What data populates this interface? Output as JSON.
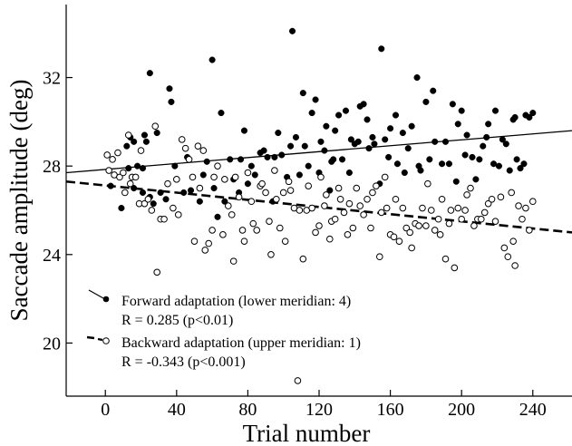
{
  "chart_data": {
    "type": "scatter",
    "xlabel": "Trial number",
    "ylabel": "Saccade amplitude (deg)",
    "xlim": [
      -22,
      262
    ],
    "ylim": [
      17.6,
      35.3
    ],
    "xticks": [
      0,
      40,
      80,
      120,
      160,
      200,
      240
    ],
    "yticks": [
      20,
      24,
      28,
      32
    ],
    "grid": false,
    "legend_position": "bottom-left",
    "series": [
      {
        "name": "Forward adaptation (lower meridian: 4)",
        "stat": "R = 0.285 (p<0.01)",
        "marker": "filled-circle",
        "line_style": "solid",
        "fit": {
          "x": [
            -22,
            262
          ],
          "y": [
            27.7,
            29.6
          ]
        },
        "points": [
          {
            "x": 3,
            "y": 27.1
          },
          {
            "x": 9,
            "y": 26.1
          },
          {
            "x": 13,
            "y": 27.9
          },
          {
            "x": 15,
            "y": 27.5
          },
          {
            "x": 16,
            "y": 27.0
          },
          {
            "x": 21,
            "y": 26.8
          },
          {
            "x": 24,
            "y": 26.5
          },
          {
            "x": 25,
            "y": 26.6
          },
          {
            "x": 12,
            "y": 28.9
          },
          {
            "x": 14,
            "y": 29.3
          },
          {
            "x": 16,
            "y": 29.1
          },
          {
            "x": 18,
            "y": 28.0
          },
          {
            "x": 21,
            "y": 27.9
          },
          {
            "x": 22,
            "y": 29.4
          },
          {
            "x": 23,
            "y": 29.1
          },
          {
            "x": 25,
            "y": 32.2
          },
          {
            "x": 27,
            "y": 26.3
          },
          {
            "x": 29,
            "y": 29.5
          },
          {
            "x": 31,
            "y": 26.8
          },
          {
            "x": 34,
            "y": 26.5
          },
          {
            "x": 36,
            "y": 31.5
          },
          {
            "x": 37,
            "y": 30.9
          },
          {
            "x": 39,
            "y": 28.0
          },
          {
            "x": 44,
            "y": 26.8
          },
          {
            "x": 46,
            "y": 28.4
          },
          {
            "x": 48,
            "y": 26.9
          },
          {
            "x": 53,
            "y": 26.4
          },
          {
            "x": 55,
            "y": 27.6
          },
          {
            "x": 57,
            "y": 28.2
          },
          {
            "x": 60,
            "y": 32.8
          },
          {
            "x": 61,
            "y": 27.0
          },
          {
            "x": 63,
            "y": 25.7
          },
          {
            "x": 65,
            "y": 30.4
          },
          {
            "x": 67,
            "y": 26.4
          },
          {
            "x": 70,
            "y": 28.3
          },
          {
            "x": 72,
            "y": 27.4
          },
          {
            "x": 75,
            "y": 26.8
          },
          {
            "x": 76,
            "y": 28.3
          },
          {
            "x": 78,
            "y": 29.6
          },
          {
            "x": 80,
            "y": 27.2
          },
          {
            "x": 82,
            "y": 28.0
          },
          {
            "x": 84,
            "y": 27.6
          },
          {
            "x": 87,
            "y": 28.6
          },
          {
            "x": 89,
            "y": 28.7
          },
          {
            "x": 91,
            "y": 28.4
          },
          {
            "x": 94,
            "y": 26.4
          },
          {
            "x": 95,
            "y": 28.4
          },
          {
            "x": 97,
            "y": 29.5
          },
          {
            "x": 99,
            "y": 28.5
          },
          {
            "x": 102,
            "y": 27.5
          },
          {
            "x": 104,
            "y": 28.9
          },
          {
            "x": 105,
            "y": 34.1
          },
          {
            "x": 107,
            "y": 29.3
          },
          {
            "x": 109,
            "y": 27.6
          },
          {
            "x": 111,
            "y": 31.3
          },
          {
            "x": 112,
            "y": 28.9
          },
          {
            "x": 114,
            "y": 28.0
          },
          {
            "x": 116,
            "y": 30.4
          },
          {
            "x": 118,
            "y": 31.0
          },
          {
            "x": 120,
            "y": 27.7
          },
          {
            "x": 121,
            "y": 29.1
          },
          {
            "x": 123,
            "y": 28.7
          },
          {
            "x": 124,
            "y": 29.8
          },
          {
            "x": 126,
            "y": 26.9
          },
          {
            "x": 127,
            "y": 28.2
          },
          {
            "x": 128,
            "y": 28.3
          },
          {
            "x": 129,
            "y": 29.6
          },
          {
            "x": 131,
            "y": 30.3
          },
          {
            "x": 133,
            "y": 28.3
          },
          {
            "x": 135,
            "y": 30.5
          },
          {
            "x": 137,
            "y": 27.7
          },
          {
            "x": 138,
            "y": 29.2
          },
          {
            "x": 140,
            "y": 29.0
          },
          {
            "x": 142,
            "y": 29.1
          },
          {
            "x": 143,
            "y": 30.7
          },
          {
            "x": 145,
            "y": 30.8
          },
          {
            "x": 147,
            "y": 30.1
          },
          {
            "x": 148,
            "y": 28.8
          },
          {
            "x": 150,
            "y": 29.3
          },
          {
            "x": 151,
            "y": 29.0
          },
          {
            "x": 154,
            "y": 27.2
          },
          {
            "x": 155,
            "y": 33.3
          },
          {
            "x": 157,
            "y": 29.2
          },
          {
            "x": 159,
            "y": 28.4
          },
          {
            "x": 160,
            "y": 29.7
          },
          {
            "x": 163,
            "y": 30.3
          },
          {
            "x": 164,
            "y": 28.1
          },
          {
            "x": 167,
            "y": 29.5
          },
          {
            "x": 168,
            "y": 27.7
          },
          {
            "x": 170,
            "y": 28.8
          },
          {
            "x": 172,
            "y": 29.8
          },
          {
            "x": 175,
            "y": 32.0
          },
          {
            "x": 176,
            "y": 28.0
          },
          {
            "x": 177,
            "y": 27.8
          },
          {
            "x": 180,
            "y": 30.9
          },
          {
            "x": 182,
            "y": 28.3
          },
          {
            "x": 184,
            "y": 31.4
          },
          {
            "x": 185,
            "y": 29.1
          },
          {
            "x": 189,
            "y": 28.1
          },
          {
            "x": 191,
            "y": 29.1
          },
          {
            "x": 193,
            "y": 28.1
          },
          {
            "x": 195,
            "y": 30.8
          },
          {
            "x": 197,
            "y": 27.3
          },
          {
            "x": 198,
            "y": 29.9
          },
          {
            "x": 200,
            "y": 30.5
          },
          {
            "x": 202,
            "y": 28.5
          },
          {
            "x": 203,
            "y": 29.4
          },
          {
            "x": 206,
            "y": 28.4
          },
          {
            "x": 208,
            "y": 27.4
          },
          {
            "x": 210,
            "y": 28.3
          },
          {
            "x": 212,
            "y": 28.9
          },
          {
            "x": 214,
            "y": 29.3
          },
          {
            "x": 215,
            "y": 29.9
          },
          {
            "x": 218,
            "y": 28.1
          },
          {
            "x": 219,
            "y": 30.5
          },
          {
            "x": 221,
            "y": 28.0
          },
          {
            "x": 223,
            "y": 29.2
          },
          {
            "x": 225,
            "y": 29.0
          },
          {
            "x": 227,
            "y": 27.8
          },
          {
            "x": 229,
            "y": 30.1
          },
          {
            "x": 230,
            "y": 30.2
          },
          {
            "x": 231,
            "y": 28.3
          },
          {
            "x": 233,
            "y": 27.9
          },
          {
            "x": 235,
            "y": 28.1
          },
          {
            "x": 236,
            "y": 30.3
          },
          {
            "x": 238,
            "y": 30.2
          },
          {
            "x": 240,
            "y": 30.4
          }
        ]
      },
      {
        "name": "Backward adaptation (upper meridian: 1)",
        "stat": "R = -0.343 (p<0.001)",
        "marker": "open-circle",
        "line_style": "dashed",
        "fit": {
          "x": [
            -22,
            262
          ],
          "y": [
            27.3,
            25.0
          ]
        },
        "points": [
          {
            "x": 1,
            "y": 28.5
          },
          {
            "x": 2,
            "y": 27.8
          },
          {
            "x": 4,
            "y": 28.3
          },
          {
            "x": 5,
            "y": 27.6
          },
          {
            "x": 7,
            "y": 28.6
          },
          {
            "x": 8,
            "y": 27.5
          },
          {
            "x": 10,
            "y": 27.7
          },
          {
            "x": 11,
            "y": 26.8
          },
          {
            "x": 13,
            "y": 29.4
          },
          {
            "x": 14,
            "y": 27.2
          },
          {
            "x": 15,
            "y": 27.5
          },
          {
            "x": 17,
            "y": 27.5
          },
          {
            "x": 19,
            "y": 26.3
          },
          {
            "x": 20,
            "y": 28.7
          },
          {
            "x": 22,
            "y": 26.3
          },
          {
            "x": 24,
            "y": 26.5
          },
          {
            "x": 26,
            "y": 26.0
          },
          {
            "x": 28,
            "y": 29.8
          },
          {
            "x": 29,
            "y": 23.2
          },
          {
            "x": 31,
            "y": 25.6
          },
          {
            "x": 33,
            "y": 25.6
          },
          {
            "x": 35,
            "y": 27.2
          },
          {
            "x": 38,
            "y": 26.1
          },
          {
            "x": 40,
            "y": 27.4
          },
          {
            "x": 41,
            "y": 25.8
          },
          {
            "x": 43,
            "y": 29.2
          },
          {
            "x": 45,
            "y": 28.8
          },
          {
            "x": 47,
            "y": 28.3
          },
          {
            "x": 49,
            "y": 27.5
          },
          {
            "x": 50,
            "y": 24.6
          },
          {
            "x": 52,
            "y": 28.9
          },
          {
            "x": 53,
            "y": 27.0
          },
          {
            "x": 55,
            "y": 28.7
          },
          {
            "x": 56,
            "y": 24.2
          },
          {
            "x": 58,
            "y": 24.5
          },
          {
            "x": 60,
            "y": 25.1
          },
          {
            "x": 61,
            "y": 27.5
          },
          {
            "x": 63,
            "y": 28.0
          },
          {
            "x": 66,
            "y": 24.9
          },
          {
            "x": 67,
            "y": 27.4
          },
          {
            "x": 69,
            "y": 26.2
          },
          {
            "x": 71,
            "y": 25.8
          },
          {
            "x": 72,
            "y": 23.7
          },
          {
            "x": 73,
            "y": 27.5
          },
          {
            "x": 75,
            "y": 26.6
          },
          {
            "x": 77,
            "y": 25.1
          },
          {
            "x": 78,
            "y": 24.6
          },
          {
            "x": 80,
            "y": 27.7
          },
          {
            "x": 82,
            "y": 26.4
          },
          {
            "x": 83,
            "y": 25.4
          },
          {
            "x": 85,
            "y": 25.1
          },
          {
            "x": 87,
            "y": 27.1
          },
          {
            "x": 88,
            "y": 27.2
          },
          {
            "x": 90,
            "y": 26.8
          },
          {
            "x": 92,
            "y": 25.5
          },
          {
            "x": 93,
            "y": 24.0
          },
          {
            "x": 95,
            "y": 27.8
          },
          {
            "x": 96,
            "y": 26.5
          },
          {
            "x": 98,
            "y": 25.2
          },
          {
            "x": 100,
            "y": 26.8
          },
          {
            "x": 101,
            "y": 24.6
          },
          {
            "x": 103,
            "y": 27.3
          },
          {
            "x": 104,
            "y": 26.9
          },
          {
            "x": 106,
            "y": 26.1
          },
          {
            "x": 108,
            "y": 18.3
          },
          {
            "x": 109,
            "y": 26.0
          },
          {
            "x": 111,
            "y": 23.8
          },
          {
            "x": 113,
            "y": 26.0
          },
          {
            "x": 114,
            "y": 27.1
          },
          {
            "x": 116,
            "y": 26.1
          },
          {
            "x": 118,
            "y": 25.0
          },
          {
            "x": 120,
            "y": 25.3
          },
          {
            "x": 121,
            "y": 27.5
          },
          {
            "x": 123,
            "y": 26.2
          },
          {
            "x": 124,
            "y": 26.7
          },
          {
            "x": 126,
            "y": 24.7
          },
          {
            "x": 127,
            "y": 25.5
          },
          {
            "x": 129,
            "y": 25.6
          },
          {
            "x": 131,
            "y": 27.0
          },
          {
            "x": 132,
            "y": 26.5
          },
          {
            "x": 134,
            "y": 25.9
          },
          {
            "x": 136,
            "y": 24.9
          },
          {
            "x": 137,
            "y": 26.3
          },
          {
            "x": 139,
            "y": 25.2
          },
          {
            "x": 141,
            "y": 27.0
          },
          {
            "x": 143,
            "y": 26.2
          },
          {
            "x": 145,
            "y": 25.8
          },
          {
            "x": 147,
            "y": 26.5
          },
          {
            "x": 149,
            "y": 25.2
          },
          {
            "x": 150,
            "y": 26.8
          },
          {
            "x": 152,
            "y": 27.1
          },
          {
            "x": 154,
            "y": 23.9
          },
          {
            "x": 155,
            "y": 25.9
          },
          {
            "x": 157,
            "y": 27.5
          },
          {
            "x": 158,
            "y": 26.1
          },
          {
            "x": 160,
            "y": 24.9
          },
          {
            "x": 162,
            "y": 24.8
          },
          {
            "x": 163,
            "y": 26.5
          },
          {
            "x": 165,
            "y": 24.6
          },
          {
            "x": 167,
            "y": 26.1
          },
          {
            "x": 169,
            "y": 25.2
          },
          {
            "x": 171,
            "y": 25.0
          },
          {
            "x": 172,
            "y": 24.3
          },
          {
            "x": 174,
            "y": 25.4
          },
          {
            "x": 176,
            "y": 25.3
          },
          {
            "x": 178,
            "y": 26.1
          },
          {
            "x": 180,
            "y": 25.3
          },
          {
            "x": 181,
            "y": 27.2
          },
          {
            "x": 183,
            "y": 26.0
          },
          {
            "x": 185,
            "y": 25.1
          },
          {
            "x": 187,
            "y": 25.6
          },
          {
            "x": 189,
            "y": 26.5
          },
          {
            "x": 191,
            "y": 23.8
          },
          {
            "x": 193,
            "y": 25.4
          },
          {
            "x": 194,
            "y": 26.0
          },
          {
            "x": 196,
            "y": 23.4
          },
          {
            "x": 198,
            "y": 26.1
          },
          {
            "x": 200,
            "y": 25.6
          },
          {
            "x": 202,
            "y": 26.0
          },
          {
            "x": 203,
            "y": 26.7
          },
          {
            "x": 205,
            "y": 27.0
          },
          {
            "x": 207,
            "y": 25.3
          },
          {
            "x": 209,
            "y": 25.6
          },
          {
            "x": 211,
            "y": 25.6
          },
          {
            "x": 213,
            "y": 25.9
          },
          {
            "x": 215,
            "y": 26.3
          },
          {
            "x": 217,
            "y": 26.5
          },
          {
            "x": 219,
            "y": 25.5
          },
          {
            "x": 222,
            "y": 26.6
          },
          {
            "x": 224,
            "y": 24.3
          },
          {
            "x": 226,
            "y": 23.9
          },
          {
            "x": 228,
            "y": 26.8
          },
          {
            "x": 230,
            "y": 23.5
          },
          {
            "x": 232,
            "y": 26.2
          },
          {
            "x": 234,
            "y": 25.6
          },
          {
            "x": 236,
            "y": 26.1
          },
          {
            "x": 238,
            "y": 25.1
          },
          {
            "x": 240,
            "y": 26.4
          },
          {
            "x": 229,
            "y": 24.6
          },
          {
            "x": 188,
            "y": 24.9
          }
        ]
      }
    ]
  }
}
